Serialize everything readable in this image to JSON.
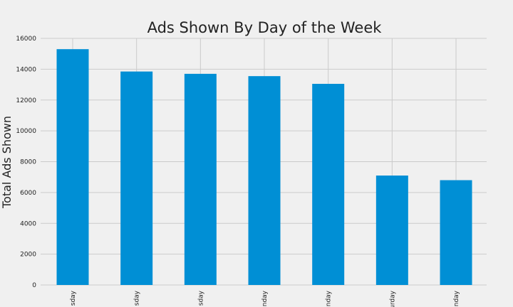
{
  "chart_data": {
    "type": "bar",
    "title": "Ads Shown By Day of the Week",
    "xlabel": "",
    "ylabel": "Total Ads Shown",
    "categories": [
      "sday",
      "sday",
      "sday",
      "nday",
      "nday",
      "urday",
      "nday"
    ],
    "values": [
      15300,
      13850,
      13700,
      13550,
      13050,
      7100,
      6800
    ],
    "ylim": [
      0,
      16000
    ],
    "yticks": [
      0,
      2000,
      4000,
      6000,
      8000,
      10000,
      12000,
      14000,
      16000
    ],
    "grid": true,
    "bar_color": "#008fd5",
    "background_color": "#f0f0f0"
  }
}
